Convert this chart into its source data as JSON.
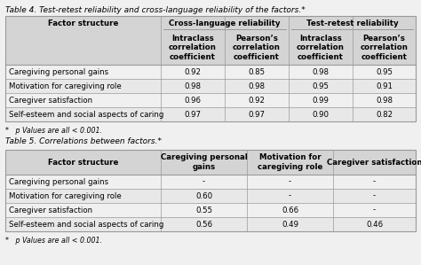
{
  "table4_title": "Table 4. Test-retest reliability and cross-language reliability of the factors.*",
  "table4_footnote": "*   p Values are all < 0.001.",
  "table4_header_row0": [
    "Factor structure",
    "Cross-language reliability",
    "",
    "Test-retest reliability",
    ""
  ],
  "table4_header_row1": [
    "",
    "Intraclass\ncorrelation\ncoefficient",
    "Pearson’s\ncorrelation\ncoefficient",
    "Intraclass\ncorrelation\ncoefficient",
    "Pearson’s\ncorrelation\ncoefficient"
  ],
  "table4_rows": [
    [
      "Caregiving personal gains",
      "0.92",
      "0.85",
      "0.98",
      "0.95"
    ],
    [
      "Motivation for caregiving role",
      "0.98",
      "0.98",
      "0.95",
      "0.91"
    ],
    [
      "Caregiver satisfaction",
      "0.96",
      "0.92",
      "0.99",
      "0.98"
    ],
    [
      "Self-esteem and social aspects of caring",
      "0.97",
      "0.97",
      "0.90",
      "0.82"
    ]
  ],
  "table5_title": "Table 5. Correlations between factors.*",
  "table5_footnote": "*   p Values are all < 0.001.",
  "table5_header_row0": [
    "Factor structure",
    "Caregiving personal\ngains",
    "Motivation for\ncaregiving role",
    "Caregiver satisfaction"
  ],
  "table5_rows": [
    [
      "Caregiving personal gains",
      "-",
      "-",
      "-"
    ],
    [
      "Motivation for caregiving role",
      "0.60",
      "-",
      "-"
    ],
    [
      "Caregiver satisfaction",
      "0.55",
      "0.66",
      "-"
    ],
    [
      "Self-esteem and social aspects of caring",
      "0.56",
      "0.49",
      "0.46"
    ]
  ],
  "header_bg": "#d4d4d4",
  "border_color": "#999999",
  "text_color": "#000000",
  "bg_color": "#f0f0f0",
  "font_size": 6.2,
  "header_font_size": 6.2,
  "title_font_size": 6.5
}
